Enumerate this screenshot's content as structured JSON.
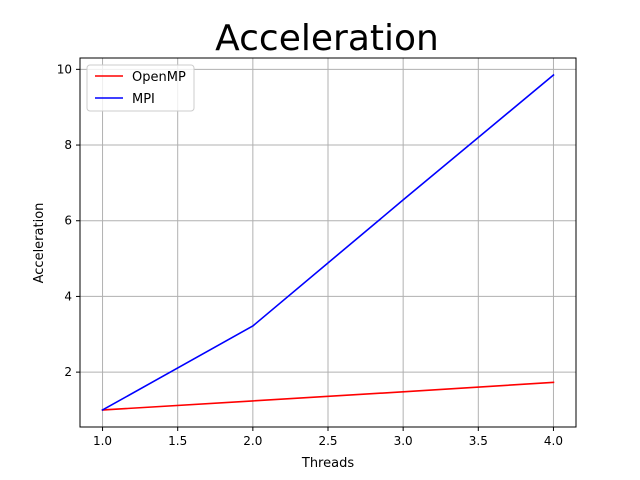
{
  "chart_data": {
    "type": "line",
    "title": "Acceleration",
    "xlabel": "Threads",
    "ylabel": "Acceleration",
    "x": [
      1.0,
      2.0,
      3.0,
      4.0
    ],
    "xlim": [
      0.85,
      4.15
    ],
    "ylim": [
      0.55,
      10.3
    ],
    "xticks": [
      1.0,
      1.5,
      2.0,
      2.5,
      3.0,
      3.5,
      4.0
    ],
    "xtick_labels": [
      "1.0",
      "1.5",
      "2.0",
      "2.5",
      "3.0",
      "3.5",
      "4.0"
    ],
    "yticks": [
      2,
      4,
      6,
      8,
      10
    ],
    "ytick_labels": [
      "2",
      "4",
      "6",
      "8",
      "10"
    ],
    "grid": true,
    "legend_position": "top-left",
    "series": [
      {
        "name": "OpenMP",
        "color": "#ff0000",
        "values": [
          1.0,
          1.24,
          1.48,
          1.73
        ]
      },
      {
        "name": "MPI",
        "color": "#0000ff",
        "values": [
          1.0,
          3.22,
          6.55,
          9.85
        ]
      }
    ]
  }
}
